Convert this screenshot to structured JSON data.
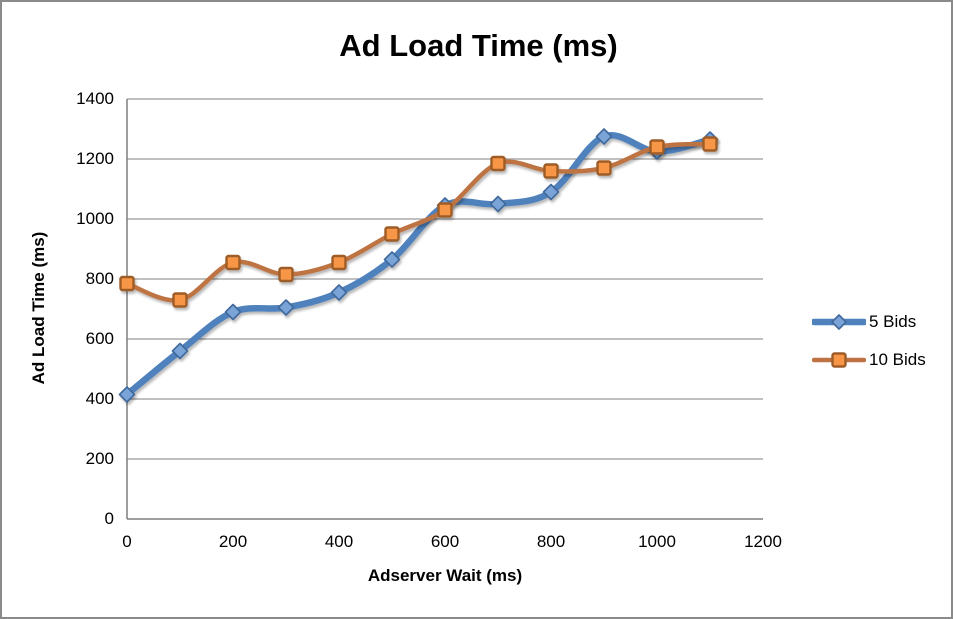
{
  "frame": {
    "background": "#ffffff",
    "border_color": "#8a8a8a"
  },
  "chart_data": {
    "type": "line",
    "title": "Ad Load Time (ms)",
    "xlabel": "Adserver Wait (ms)",
    "ylabel": "Ad Load Time (ms)",
    "x": [
      0,
      100,
      200,
      300,
      400,
      500,
      600,
      700,
      800,
      900,
      1000,
      1100
    ],
    "series": [
      {
        "name": "5 Bids",
        "values": [
          415,
          560,
          690,
          705,
          755,
          865,
          1045,
          1050,
          1090,
          1275,
          1225,
          1265
        ],
        "color": "#4f81bd",
        "marker": "diamond",
        "marker_fill": "#7aa4d8",
        "marker_stroke": "#41699c",
        "line_width": 6.5
      },
      {
        "name": "10 Bids",
        "values": [
          785,
          730,
          855,
          815,
          855,
          950,
          1030,
          1185,
          1160,
          1170,
          1240,
          1250
        ],
        "color": "#be7342",
        "marker": "square",
        "marker_fill": "#f79646",
        "marker_stroke": "#9e5c28",
        "line_width": 4.5
      }
    ],
    "xlim": [
      0,
      1200
    ],
    "ylim": [
      0,
      1400
    ],
    "x_ticks": [
      0,
      200,
      400,
      600,
      800,
      1000,
      1200
    ],
    "y_ticks": [
      0,
      200,
      400,
      600,
      800,
      1000,
      1200,
      1400
    ],
    "grid": "horizontal",
    "gridline_color": "#9b9b9b",
    "axis_color": "#7f7f7f",
    "legend_position": "right",
    "smoothed_lines": true
  }
}
